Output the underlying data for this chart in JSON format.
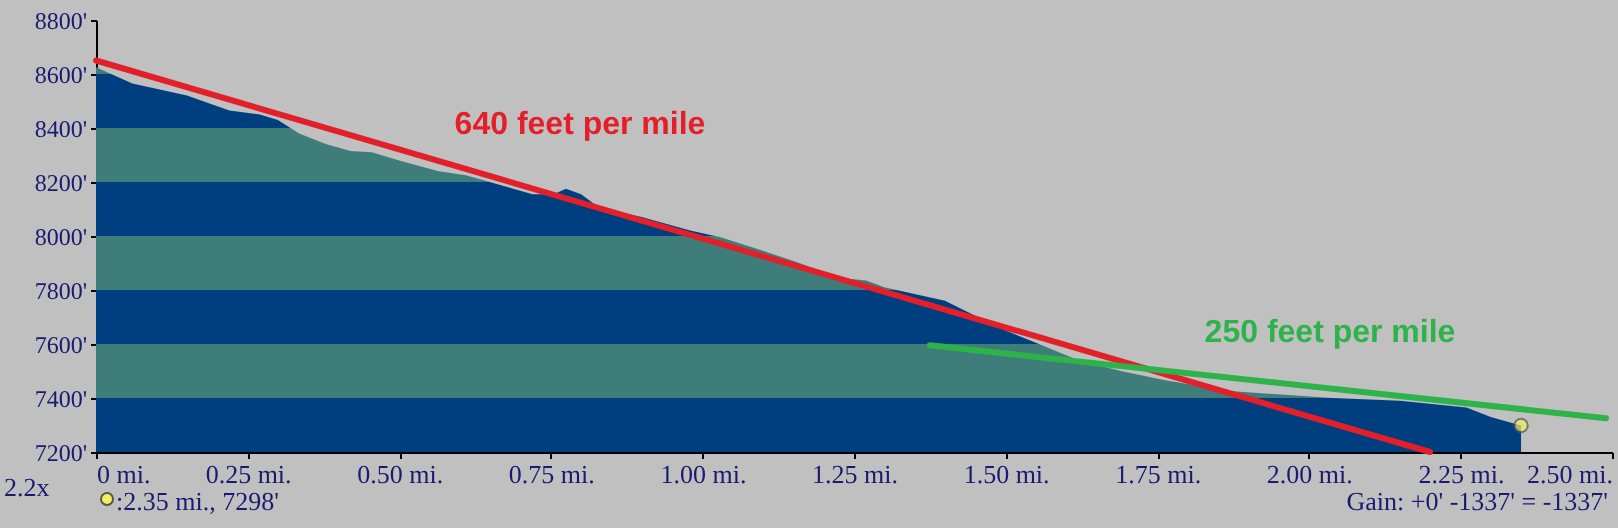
{
  "chart_data": {
    "type": "area",
    "xlim": [
      0,
      2.5
    ],
    "xticks": [
      {
        "value": 0,
        "label": "0 mi."
      },
      {
        "value": 0.25,
        "label": "0.25 mi."
      },
      {
        "value": 0.5,
        "label": "0.50 mi."
      },
      {
        "value": 0.75,
        "label": "0.75 mi."
      },
      {
        "value": 1,
        "label": "1.00 mi."
      },
      {
        "value": 1.25,
        "label": "1.25 mi."
      },
      {
        "value": 1.5,
        "label": "1.50 mi."
      },
      {
        "value": 1.75,
        "label": "1.75 mi."
      },
      {
        "value": 2,
        "label": "2.00 mi."
      },
      {
        "value": 2.25,
        "label": "2.25 mi."
      },
      {
        "value": 2.5,
        "label": "2.50 mi."
      }
    ],
    "ylim": [
      7200,
      8800
    ],
    "yticks": [
      {
        "value": 7200,
        "label": "7200'"
      },
      {
        "value": 7400,
        "label": "7400'"
      },
      {
        "value": 7600,
        "label": "7600'"
      },
      {
        "value": 7800,
        "label": "7800'"
      },
      {
        "value": 8000,
        "label": "8000'"
      },
      {
        "value": 8200,
        "label": "8200'"
      },
      {
        "value": 8400,
        "label": "8400'"
      },
      {
        "value": 8600,
        "label": "8600'"
      },
      {
        "value": 8800,
        "label": "8800'"
      }
    ],
    "series": [
      {
        "type": "area",
        "color": "#003f7f",
        "x": [
          0,
          0.06,
          0.15,
          0.22,
          0.27,
          0.3,
          0.335,
          0.38,
          0.42,
          0.455,
          0.5,
          0.565,
          0.61,
          0.72,
          0.755,
          0.775,
          0.8,
          0.83,
          0.9,
          0.98,
          1.03,
          1.1,
          1.16,
          1.225,
          1.27,
          1.3,
          1.4,
          1.445,
          1.5,
          1.555,
          1.62,
          1.69,
          1.765,
          1.875,
          2.04,
          2.15,
          2.26,
          2.3,
          2.35
        ],
        "values": [
          8625,
          8565,
          8520,
          8465,
          8450,
          8430,
          8380,
          8340,
          8315,
          8310,
          8280,
          8240,
          8225,
          8155,
          8155,
          8175,
          8155,
          8105,
          8070,
          8020,
          7995,
          7945,
          7900,
          7845,
          7835,
          7810,
          7760,
          7710,
          7650,
          7600,
          7540,
          7500,
          7465,
          7425,
          7400,
          7390,
          7365,
          7330,
          7298
        ]
      },
      {
        "type": "line",
        "color": "#e3202a",
        "x": [
          0,
          2.2
        ],
        "values": [
          8650,
          7200
        ]
      },
      {
        "type": "line",
        "color": "#2db34a",
        "x": [
          1.375,
          2.49
        ],
        "values": [
          7595,
          7325
        ]
      },
      {
        "type": "scatter",
        "color": "#f4ef5c",
        "x": [
          2.35
        ],
        "values": [
          7298
        ]
      }
    ],
    "annotations": [
      "640 feet per mile",
      "250 feet per mile",
      "2.2x",
      ":2.35 mi., 7298'",
      "Gain: +0' -1337' = -1337'"
    ]
  }
}
